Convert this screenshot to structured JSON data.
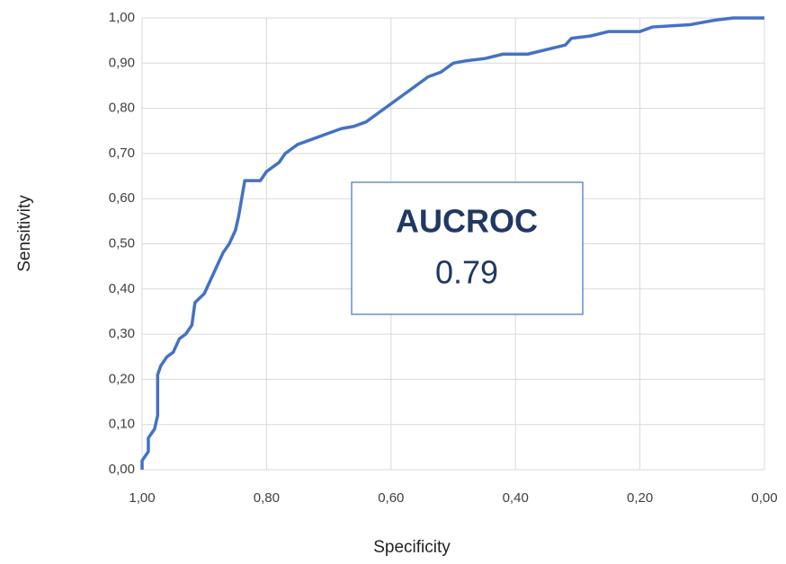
{
  "chart_data": {
    "type": "line",
    "xlabel": "Specificity",
    "ylabel": "Sensitivity",
    "color": "#4472c4",
    "grid": true,
    "xlim": [
      1,
      0
    ],
    "ylim": [
      0,
      1
    ],
    "xticks": [
      {
        "value": 1,
        "label": "1,00"
      },
      {
        "value": 0.8,
        "label": "0,80"
      },
      {
        "value": 0.6,
        "label": "0,60"
      },
      {
        "value": 0.4,
        "label": "0,40"
      },
      {
        "value": 0.2,
        "label": "0,20"
      },
      {
        "value": 0,
        "label": "0,00"
      }
    ],
    "yticks": [
      {
        "value": 0,
        "label": "0,00"
      },
      {
        "value": 0.1,
        "label": "0,10"
      },
      {
        "value": 0.2,
        "label": "0,20"
      },
      {
        "value": 0.3,
        "label": "0,30"
      },
      {
        "value": 0.4,
        "label": "0,40"
      },
      {
        "value": 0.5,
        "label": "0,50"
      },
      {
        "value": 0.6,
        "label": "0,60"
      },
      {
        "value": 0.7,
        "label": "0,70"
      },
      {
        "value": 0.8,
        "label": "0,80"
      },
      {
        "value": 0.9,
        "label": "0,90"
      },
      {
        "value": 1,
        "label": "1,00"
      }
    ],
    "x": [
      1.0,
      1.0,
      0.99,
      0.99,
      0.98,
      0.975,
      0.975,
      0.97,
      0.96,
      0.95,
      0.94,
      0.93,
      0.92,
      0.915,
      0.9,
      0.89,
      0.88,
      0.87,
      0.86,
      0.85,
      0.845,
      0.84,
      0.835,
      0.82,
      0.81,
      0.8,
      0.78,
      0.77,
      0.76,
      0.75,
      0.72,
      0.7,
      0.68,
      0.66,
      0.64,
      0.62,
      0.6,
      0.58,
      0.56,
      0.54,
      0.52,
      0.5,
      0.48,
      0.45,
      0.42,
      0.38,
      0.35,
      0.32,
      0.31,
      0.28,
      0.25,
      0.2,
      0.18,
      0.12,
      0.08,
      0.05,
      0.0
    ],
    "values": [
      0.0,
      0.02,
      0.04,
      0.07,
      0.09,
      0.12,
      0.21,
      0.23,
      0.25,
      0.26,
      0.29,
      0.3,
      0.32,
      0.37,
      0.39,
      0.42,
      0.45,
      0.48,
      0.5,
      0.53,
      0.56,
      0.6,
      0.64,
      0.64,
      0.64,
      0.66,
      0.68,
      0.7,
      0.71,
      0.72,
      0.735,
      0.745,
      0.755,
      0.76,
      0.77,
      0.79,
      0.81,
      0.83,
      0.85,
      0.87,
      0.88,
      0.9,
      0.905,
      0.91,
      0.92,
      0.92,
      0.93,
      0.94,
      0.955,
      0.96,
      0.97,
      0.97,
      0.98,
      0.985,
      0.995,
      1.0,
      1.0
    ],
    "annotation": {
      "title": "AUCROC",
      "value": 0.79
    }
  }
}
